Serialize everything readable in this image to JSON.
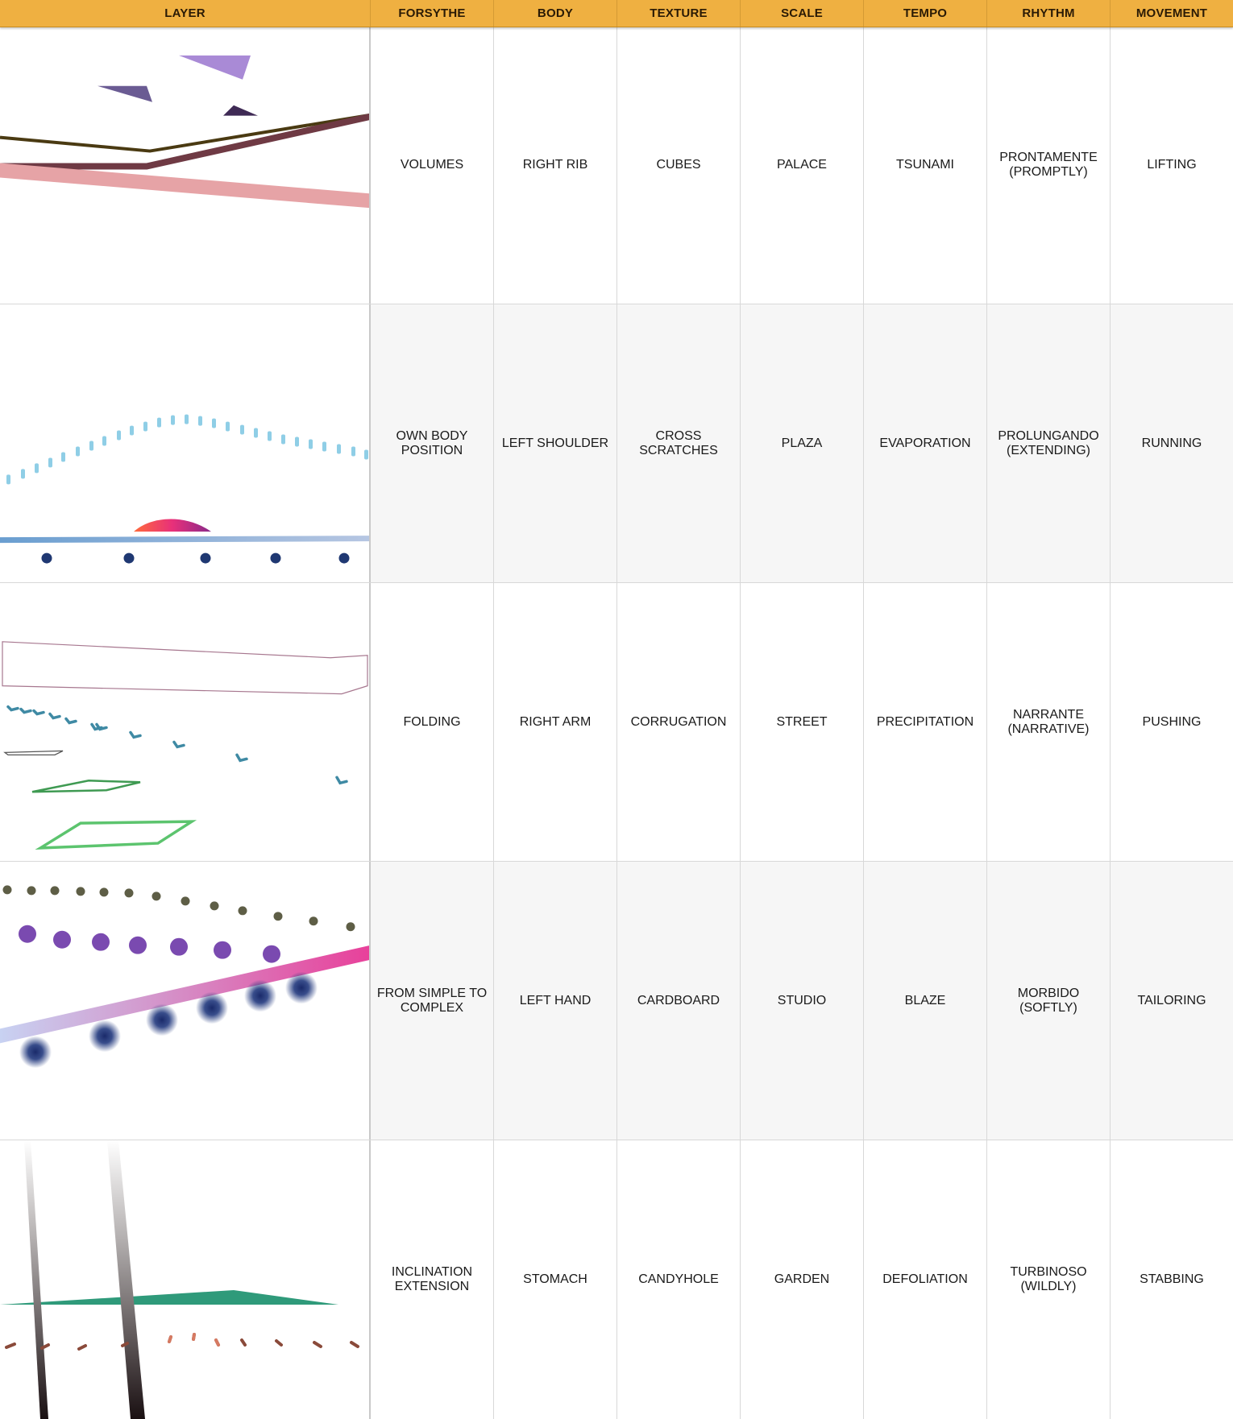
{
  "headers": {
    "layer": "LAYER",
    "forsythe": "FORSYTHE",
    "body": "BODY",
    "texture": "TEXTURE",
    "scale": "SCALE",
    "tempo": "TEMPO",
    "rhythm": "RHYTHM",
    "movement": "MOVEMENT"
  },
  "rows": [
    {
      "forsythe": "VOLUMES",
      "body": "RIGHT RIB",
      "texture": "CUBES",
      "scale": "PALACE",
      "tempo": "TSUNAMI",
      "rhythm": "PRONTAMENTE\n(PROMPTLY)",
      "movement": "LIFTING"
    },
    {
      "forsythe": "OWN BODY\nPOSITION",
      "body": "LEFT SHOULDER",
      "texture": "CROSS\nSCRATCHES",
      "scale": "PLAZA",
      "tempo": "EVAPORATION",
      "rhythm": "PROLUNGANDO\n(EXTENDING)",
      "movement": "RUNNING"
    },
    {
      "forsythe": "FOLDING",
      "body": "RIGHT ARM",
      "texture": "CORRUGATION",
      "scale": "STREET",
      "tempo": "PRECIPITATION",
      "rhythm": "NARRANTE\n(NARRATIVE)",
      "movement": "PUSHING"
    },
    {
      "forsythe": "FROM SIMPLE TO\nCOMPLEX",
      "body": "LEFT HAND",
      "texture": "CARDBOARD",
      "scale": "STUDIO",
      "tempo": "BLAZE",
      "rhythm": "MORBIDO\n(SOFTLY)",
      "movement": "TAILORING"
    },
    {
      "forsythe": "INCLINATION\nEXTENSION",
      "body": "STOMACH",
      "texture": "CANDYHOLE",
      "scale": "GARDEN",
      "tempo": "DEFOLIATION",
      "rhythm": "TURBINOSO\n(WILDLY)",
      "movement": "STABBING"
    }
  ],
  "colors": {
    "header_bg": "#efb041",
    "grid_line": "#d8d8d8",
    "alt_row_bg": "#f6f6f6"
  }
}
